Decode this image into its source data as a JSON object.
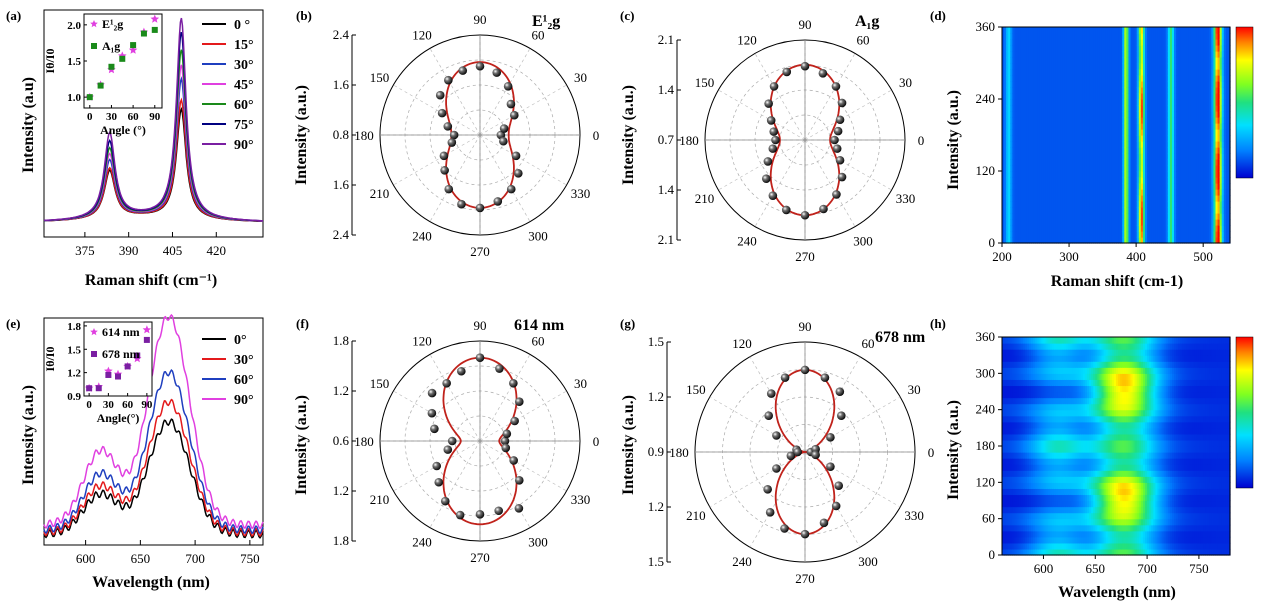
{
  "figure": {
    "panel_labels": [
      "(a)",
      "(b)",
      "(c)",
      "(d)",
      "(e)",
      "(f)",
      "(g)",
      "(h)"
    ]
  },
  "chart_data": [
    {
      "panel": "(a)",
      "type": "line",
      "xlabel": "Raman shift (cm⁻¹)",
      "ylabel": "Intensity (a.u)",
      "xlim": [
        361,
        436
      ],
      "xticks": [
        375,
        390,
        405,
        420
      ],
      "yticks": [],
      "peaks": [
        {
          "center": 383.5,
          "width": 2.2
        },
        {
          "center": 408,
          "width": 2.0
        }
      ],
      "series": [
        {
          "name": "0 °",
          "color": "#000000",
          "peak1": 0.41,
          "peak2": 0.94
        },
        {
          "name": "15°",
          "color": "#e31a1c",
          "peak1": 0.43,
          "peak2": 1.02
        },
        {
          "name": "30°",
          "color": "#1f3fbf",
          "peak1": 0.5,
          "peak2": 1.2
        },
        {
          "name": "45°",
          "color": "#e040e0",
          "peak1": 0.55,
          "peak2": 1.32
        },
        {
          "name": "60°",
          "color": "#1a8a1a",
          "peak1": 0.6,
          "peak2": 1.45
        },
        {
          "name": "75°",
          "color": "#000080",
          "peak1": 0.66,
          "peak2": 1.6
        },
        {
          "name": "90°",
          "color": "#7a1fa2",
          "peak1": 0.73,
          "peak2": 1.72
        }
      ],
      "inset": {
        "type": "scatter",
        "xlabel": "Angle (°)",
        "ylabel": "Iθ/I0",
        "xlim": [
          -8,
          100
        ],
        "ylim": [
          0.85,
          2.15
        ],
        "xticks": [
          0,
          30,
          60,
          90
        ],
        "yticks": [
          1.0,
          1.5,
          2.0
        ],
        "series": [
          {
            "name": "E¹₂g",
            "marker": "star",
            "color": "#e040e0",
            "x": [
              0,
              15,
              30,
              45,
              60,
              75,
              90
            ],
            "y": [
              1.0,
              1.17,
              1.38,
              1.57,
              1.65,
              1.9,
              2.08
            ]
          },
          {
            "name": "A₁g",
            "marker": "square",
            "color": "#1a8a1a",
            "x": [
              0,
              15,
              30,
              45,
              60,
              75,
              90
            ],
            "y": [
              1.0,
              1.16,
              1.42,
              1.53,
              1.72,
              1.88,
              1.93
            ]
          }
        ]
      }
    },
    {
      "panel": "(b)",
      "type": "polar",
      "title": "E¹₂g",
      "ylabel": "Intensity (a.u.)",
      "rmax": 2.4,
      "r_tick_labels": [
        "2.4",
        "1.6",
        "0.8",
        "1.6",
        "2.4"
      ],
      "angle_labels": [
        "90",
        "60",
        "30",
        "0",
        "330",
        "300",
        "270",
        "240",
        "210",
        "180",
        "150",
        "120"
      ],
      "fit": {
        "a": 1.0,
        "b": 0.65,
        "power": 2.4
      },
      "points": {
        "angles": [
          0,
          15,
          30,
          45,
          60,
          75,
          90,
          105,
          120,
          135,
          150,
          165,
          180,
          195,
          210,
          225,
          240,
          255,
          270,
          285,
          300,
          315,
          330,
          345
        ],
        "r": [
          0.5,
          0.6,
          0.95,
          1.05,
          1.35,
          1.55,
          1.65,
          1.6,
          1.52,
          1.35,
          1.05,
          0.8,
          0.62,
          0.7,
          1.0,
          1.2,
          1.5,
          1.72,
          1.75,
          1.65,
          1.5,
          1.3,
          1.0,
          0.58
        ]
      }
    },
    {
      "panel": "(c)",
      "type": "polar",
      "title": "A₁g",
      "ylabel": "Intensity (a.u.)",
      "rmax": 2.1,
      "r_tick_labels": [
        "2.1",
        "1.4",
        "0.7",
        "1.4",
        "2.1"
      ],
      "angle_labels": [
        "90",
        "60",
        "30",
        "0",
        "330",
        "300",
        "270",
        "240",
        "210",
        "180",
        "150",
        "120"
      ],
      "fit": {
        "a": 1.0,
        "b": 0.5,
        "power": 2.2
      },
      "points": {
        "angles": [
          0,
          15,
          30,
          45,
          60,
          75,
          90,
          105,
          120,
          135,
          150,
          165,
          180,
          195,
          210,
          225,
          240,
          255,
          270,
          285,
          300,
          315,
          330,
          345
        ],
        "r": [
          0.62,
          0.72,
          0.85,
          1.1,
          1.3,
          1.45,
          1.55,
          1.48,
          1.3,
          1.08,
          0.82,
          0.68,
          0.62,
          0.7,
          0.9,
          1.15,
          1.35,
          1.52,
          1.58,
          1.5,
          1.32,
          1.1,
          0.85,
          0.7
        ]
      }
    },
    {
      "panel": "(d)",
      "type": "heatmap",
      "xlabel": "Raman shift (cm-1)",
      "ylabel": "Intensity (a.u.)",
      "xlim": [
        200,
        540
      ],
      "ylim": [
        0,
        360
      ],
      "xticks": [
        200,
        300,
        400,
        500
      ],
      "yticks": [
        0,
        120,
        240,
        360
      ],
      "bands": [
        {
          "center": 210,
          "width": 3,
          "amp": 0.22
        },
        {
          "center": 385,
          "width": 2.5,
          "amp": 0.6
        },
        {
          "center": 408,
          "width": 3,
          "amp": 0.85
        },
        {
          "center": 452,
          "width": 3,
          "amp": 0.4
        },
        {
          "center": 522,
          "width": 4,
          "amp": 0.95
        }
      ]
    },
    {
      "panel": "(e)",
      "type": "line",
      "xlabel": "Wavelength (nm)",
      "ylabel": "Intensity (a.u.)",
      "xlim": [
        562,
        762
      ],
      "xticks": [
        600,
        650,
        700,
        750
      ],
      "yticks": [],
      "series": [
        {
          "name": "0°",
          "color": "#000000",
          "scale": 1.0
        },
        {
          "name": "30°",
          "color": "#e31a1c",
          "scale": 1.16
        },
        {
          "name": "60°",
          "color": "#1f3fbf",
          "scale": 1.4
        },
        {
          "name": "90°",
          "color": "#e040e0",
          "scale": 1.85
        }
      ],
      "inset": {
        "type": "scatter",
        "xlabel": "Angle(°)",
        "ylabel": "Iθ/I0",
        "xlim": [
          -8,
          98
        ],
        "ylim": [
          0.9,
          1.85
        ],
        "xticks": [
          0,
          30,
          60,
          90
        ],
        "yticks": [
          0.9,
          1.2,
          1.5,
          1.8
        ],
        "series": [
          {
            "name": "614 nm",
            "marker": "star",
            "color": "#e040e0",
            "x": [
              0,
              15,
              30,
              45,
              60,
              75,
              90
            ],
            "y": [
              1.0,
              1.02,
              1.22,
              1.18,
              1.28,
              1.38,
              1.75
            ]
          },
          {
            "name": "678 nm",
            "marker": "square",
            "color": "#7a1fa2",
            "x": [
              0,
              15,
              30,
              45,
              60,
              75,
              90
            ],
            "y": [
              1.0,
              1.0,
              1.17,
              1.15,
              1.28,
              1.42,
              1.62
            ]
          }
        ]
      }
    },
    {
      "panel": "(f)",
      "type": "polar",
      "title": "614 nm",
      "ylabel": "Intensity (a.u.)",
      "rmax": 1.8,
      "r_tick_labels": [
        "1.8",
        "1.2",
        "0.6",
        "1.2",
        "1.8"
      ],
      "angle_labels": [
        "90",
        "60",
        "30",
        "0",
        "330",
        "300",
        "270",
        "240",
        "210",
        "180",
        "150",
        "120"
      ],
      "fit": {
        "a": 1.0,
        "b": 0.3,
        "power": 2.0
      },
      "points": {
        "angles": [
          0,
          15,
          30,
          45,
          60,
          75,
          90,
          105,
          120,
          135,
          150,
          165,
          180,
          195,
          210,
          225,
          240,
          255,
          270,
          285,
          300,
          315,
          330,
          345
        ],
        "r": [
          0.45,
          0.5,
          0.72,
          1.0,
          1.2,
          1.35,
          1.5,
          1.3,
          1.2,
          1.22,
          1.0,
          0.85,
          0.5,
          0.6,
          0.9,
          1.05,
          1.25,
          1.38,
          1.32,
          1.3,
          1.4,
          1.0,
          0.7,
          0.48
        ]
      }
    },
    {
      "panel": "(g)",
      "type": "polar",
      "title": "678 nm",
      "ylabel": "Intensity (a.u.)",
      "rmax": 1.5,
      "r_tick_labels": [
        "1.5",
        "1.2",
        "0.9",
        "1.2",
        "1.5"
      ],
      "angle_labels": [
        "90",
        "60",
        "30",
        "0",
        "330",
        "300",
        "270",
        "240",
        "210",
        "180",
        "150",
        "120"
      ],
      "fit": {
        "a": 1.0,
        "b": 0.0,
        "power": 2.4
      },
      "points": {
        "angles": [
          0,
          15,
          30,
          45,
          60,
          75,
          90,
          105,
          120,
          135,
          150,
          165,
          180,
          195,
          210,
          225,
          240,
          255,
          270,
          285,
          300,
          315,
          330,
          345
        ],
        "r": [
          0.08,
          0.15,
          0.4,
          0.7,
          0.95,
          1.05,
          1.12,
          1.05,
          0.92,
          0.7,
          0.45,
          0.12,
          0.1,
          0.2,
          0.45,
          0.72,
          0.95,
          1.08,
          1.12,
          1.0,
          0.85,
          0.65,
          0.4,
          0.15
        ]
      }
    },
    {
      "panel": "(h)",
      "type": "heatmap",
      "xlabel": "Wavelength (nm)",
      "ylabel": "Intensity (a.u.)",
      "xlim": [
        560,
        780
      ],
      "ylim": [
        0,
        360
      ],
      "xticks": [
        600,
        650,
        700,
        750
      ],
      "yticks": [
        0,
        60,
        120,
        180,
        240,
        300,
        360
      ],
      "bands": [
        {
          "center": 678,
          "width": 22,
          "amp": 0.8
        },
        {
          "center": 614,
          "width": 20,
          "amp": 0.3
        }
      ]
    }
  ]
}
